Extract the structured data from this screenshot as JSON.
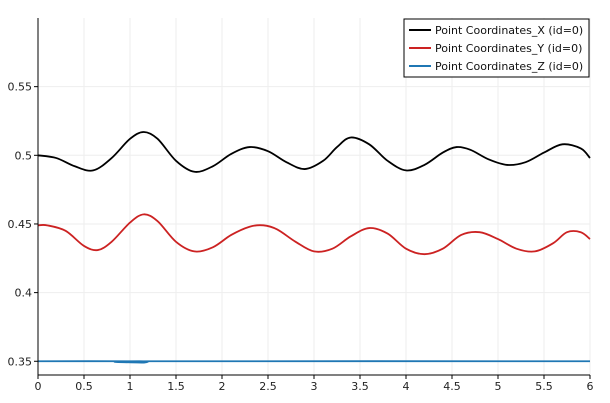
{
  "chart_data": {
    "type": "line",
    "title": "",
    "xlabel": "",
    "ylabel": "",
    "xlim": [
      0,
      6
    ],
    "ylim": [
      0.34,
      0.6
    ],
    "x_ticks": [
      0,
      0.5,
      1,
      1.5,
      2,
      2.5,
      3,
      3.5,
      4,
      4.5,
      5,
      5.5,
      6
    ],
    "x_tick_labels": [
      "0",
      "0.5",
      "1",
      "1.5",
      "2",
      "2.5",
      "3",
      "3.5",
      "4",
      "4.5",
      "5",
      "5.5",
      "6"
    ],
    "y_ticks": [
      0.35,
      0.4,
      0.45,
      0.5,
      0.55
    ],
    "y_tick_labels": [
      "0.35",
      "0.4",
      "0.45",
      "0.5",
      "0.55"
    ],
    "grid": true,
    "legend_position": "top-right",
    "series": [
      {
        "name": "Point Coordinates_X (id=0)",
        "color": "#000000",
        "x": [
          0,
          0.2,
          0.4,
          0.6,
          0.8,
          1.0,
          1.15,
          1.3,
          1.5,
          1.7,
          1.9,
          2.1,
          2.3,
          2.5,
          2.7,
          2.9,
          3.1,
          3.25,
          3.4,
          3.6,
          3.8,
          4.0,
          4.2,
          4.4,
          4.55,
          4.7,
          4.9,
          5.1,
          5.3,
          5.5,
          5.7,
          5.9,
          6.0
        ],
        "values": [
          0.5,
          0.498,
          0.492,
          0.489,
          0.498,
          0.512,
          0.517,
          0.512,
          0.496,
          0.488,
          0.492,
          0.501,
          0.506,
          0.503,
          0.495,
          0.49,
          0.496,
          0.506,
          0.513,
          0.508,
          0.496,
          0.489,
          0.493,
          0.502,
          0.506,
          0.504,
          0.497,
          0.493,
          0.495,
          0.502,
          0.508,
          0.505,
          0.498
        ]
      },
      {
        "name": "Point Coordinates_Y (id=0)",
        "color": "#cc2222",
        "x": [
          0,
          0.1,
          0.3,
          0.5,
          0.65,
          0.8,
          1.0,
          1.15,
          1.3,
          1.5,
          1.7,
          1.9,
          2.1,
          2.3,
          2.45,
          2.6,
          2.8,
          3.0,
          3.2,
          3.4,
          3.6,
          3.8,
          4.0,
          4.2,
          4.4,
          4.6,
          4.8,
          5.0,
          5.2,
          5.4,
          5.6,
          5.75,
          5.9,
          6.0
        ],
        "values": [
          0.449,
          0.449,
          0.445,
          0.434,
          0.431,
          0.437,
          0.451,
          0.457,
          0.452,
          0.437,
          0.43,
          0.433,
          0.442,
          0.448,
          0.449,
          0.446,
          0.437,
          0.43,
          0.432,
          0.441,
          0.447,
          0.443,
          0.432,
          0.428,
          0.432,
          0.442,
          0.444,
          0.439,
          0.432,
          0.43,
          0.436,
          0.444,
          0.444,
          0.439
        ]
      },
      {
        "name": "Point Coordinates_Z (id=0)",
        "color": "#1f77b4",
        "x": [
          0,
          1.1,
          1.15,
          1.2,
          6.0
        ],
        "values": [
          0.35,
          0.35,
          0.349,
          0.35,
          0.35
        ]
      }
    ]
  }
}
